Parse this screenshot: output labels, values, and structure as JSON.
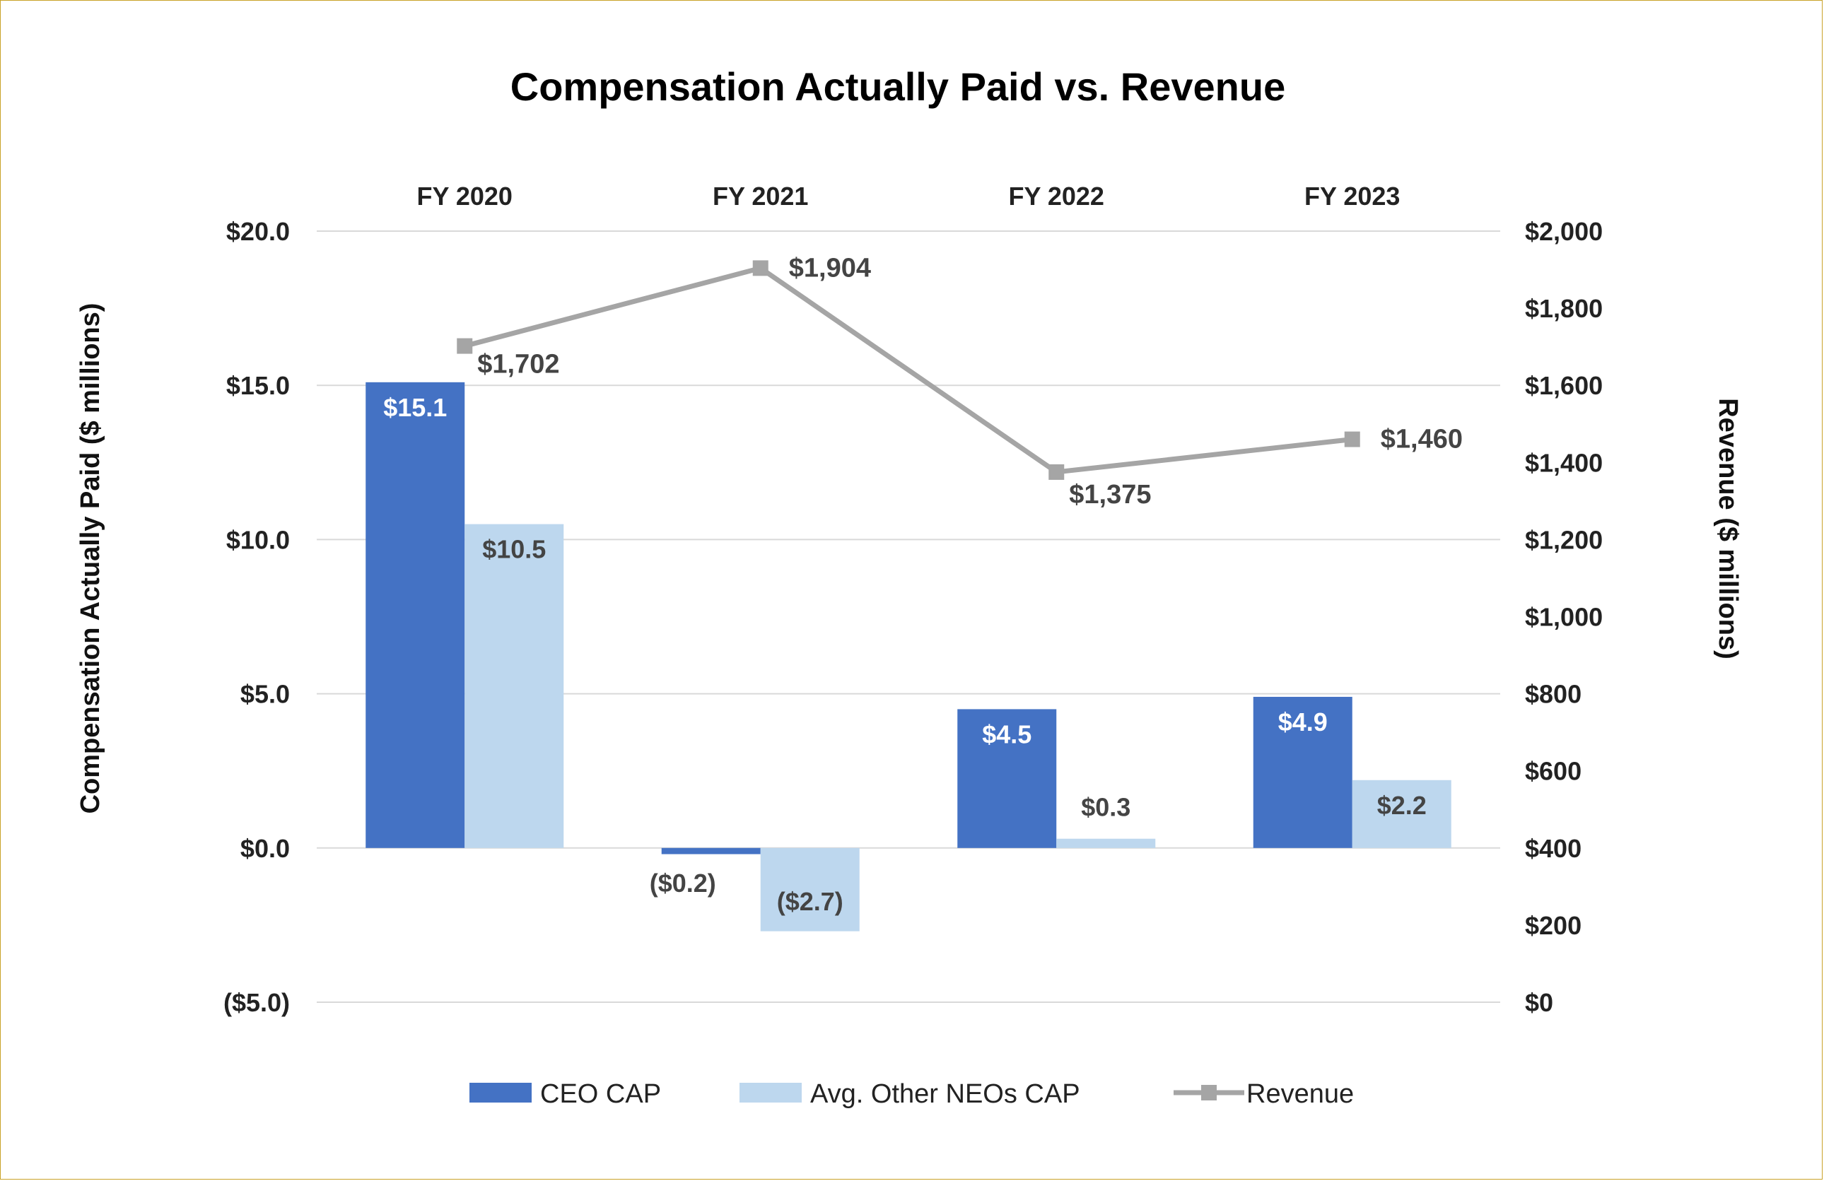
{
  "chart_data": {
    "type": "bar",
    "title": "Compensation Actually Paid vs. Revenue",
    "categories": [
      "FY 2020",
      "FY 2021",
      "FY 2022",
      "FY 2023"
    ],
    "series": [
      {
        "name": "CEO CAP",
        "kind": "bar",
        "axis": "left",
        "color": "#4472C4",
        "values": [
          15.1,
          -0.2,
          4.5,
          4.9
        ],
        "labels": [
          "$15.1",
          "($0.2)",
          "$4.5",
          "$4.9"
        ]
      },
      {
        "name": "Avg. Other NEOs CAP",
        "kind": "bar",
        "axis": "left",
        "color": "#BDD7EE",
        "values": [
          10.5,
          -2.7,
          0.3,
          2.2
        ],
        "labels": [
          "$10.5",
          "($2.7)",
          "$0.3",
          "$2.2"
        ]
      },
      {
        "name": "Revenue",
        "kind": "line",
        "axis": "right",
        "color": "#A5A5A5",
        "values": [
          1702,
          1904,
          1375,
          1460
        ],
        "labels": [
          "$1,702",
          "$1,904",
          "$1,375",
          "$1,460"
        ]
      }
    ],
    "ylabel": "Compensation Actually Paid ($ millions)",
    "y2label": "Revenue ($ millions)",
    "ylim": [
      -5,
      20
    ],
    "y2lim": [
      0,
      2000
    ],
    "yticks": [
      20,
      15,
      10,
      5,
      0,
      -5
    ],
    "yticklabels": [
      "$20.0",
      "$15.0",
      "$10.0",
      "$5.0",
      "$0.0",
      "($5.0)"
    ],
    "y2ticks": [
      2000,
      1800,
      1600,
      1400,
      1200,
      1000,
      800,
      600,
      400,
      200,
      0
    ],
    "y2ticklabels": [
      "$2,000",
      "$1,800",
      "$1,600",
      "$1,400",
      "$1,200",
      "$1,000",
      "$800",
      "$600",
      "$400",
      "$200",
      "$0"
    ],
    "grid": true,
    "legend": "bottom"
  }
}
